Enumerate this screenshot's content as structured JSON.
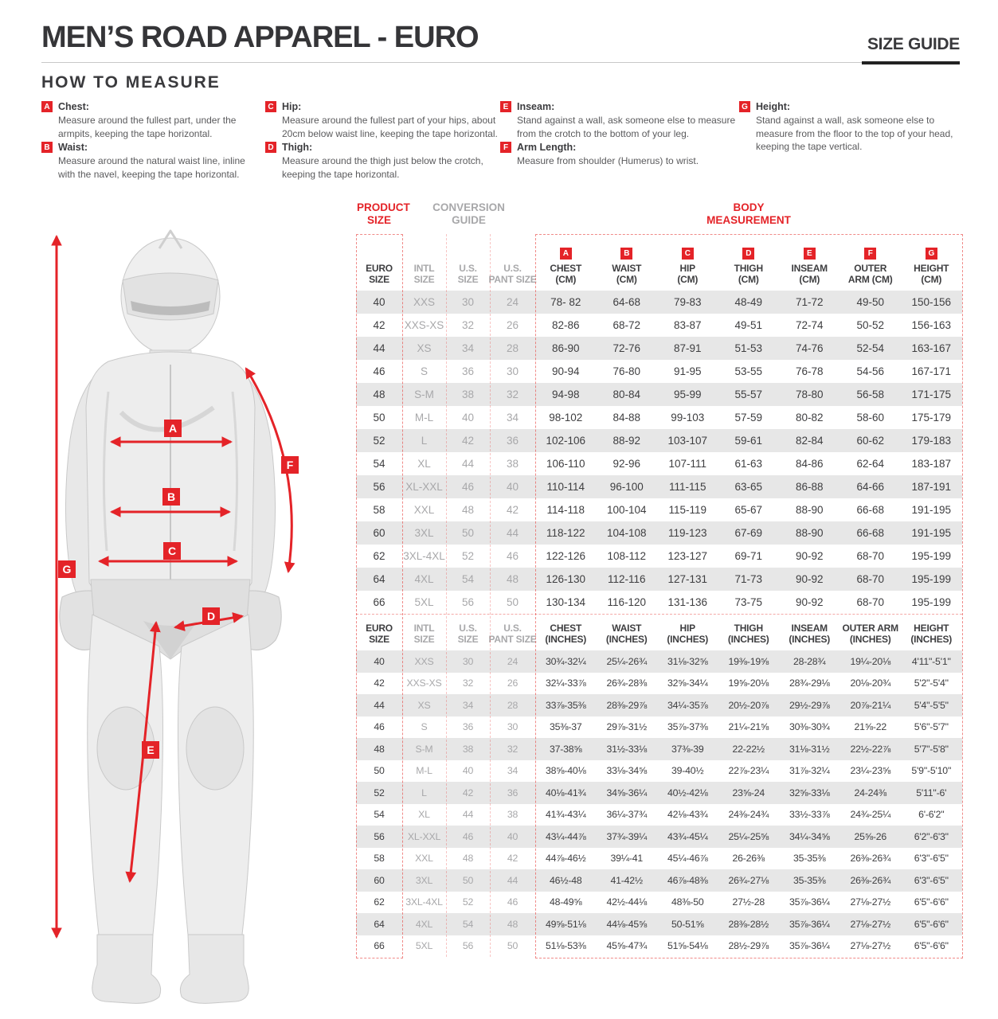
{
  "page": {
    "title": "MEN’S ROAD APPAREL - EURO",
    "size_guide_label": "SIZE GUIDE"
  },
  "colors": {
    "accent_red": "#e42328",
    "stripe_gray": "#e7e7e7",
    "conversion_gray": "#a8a8aa",
    "text_dark": "#3e3e40"
  },
  "how_to_measure": {
    "heading": "HOW TO MEASURE",
    "columns": [
      [
        {
          "letter": "A",
          "name": "Chest:",
          "description": "Measure around the fullest part, under the armpits, keeping the tape horizontal."
        },
        {
          "letter": "B",
          "name": "Waist:",
          "description": "Measure around the natural waist line, inline with the navel, keeping the tape horizontal."
        }
      ],
      [
        {
          "letter": "C",
          "name": "Hip:",
          "description": "Measure around the fullest part of your hips, about 20cm below waist line, keeping the tape horizontal."
        },
        {
          "letter": "D",
          "name": "Thigh:",
          "description": "Measure around the thigh just below the crotch, keeping the tape horizontal."
        }
      ],
      [
        {
          "letter": "E",
          "name": "Inseam:",
          "description": "Stand against a wall, ask someone else to measure from the crotch to the bottom of your leg."
        },
        {
          "letter": "F",
          "name": "Arm Length:",
          "description": "Measure from shoulder (Humerus) to wrist."
        }
      ],
      [
        {
          "letter": "G",
          "name": "Height:",
          "description": "Stand against a wall, ask someone else to measure from the floor to the top of your head, keeping the tape vertical."
        }
      ]
    ]
  },
  "figure": {
    "badges": [
      "A",
      "B",
      "C",
      "D",
      "E",
      "F",
      "G"
    ]
  },
  "table": {
    "section_labels": {
      "product_size": "PRODUCT SIZE",
      "conversion_guide": "CONVERSION GUIDE",
      "body_measurement": "BODY MEASUREMENT"
    },
    "cm_headers": [
      {
        "line1": "EURO",
        "line2": "SIZE"
      },
      {
        "line1": "INTL",
        "line2": "SIZE"
      },
      {
        "line1": "U.S.",
        "line2": "SIZE"
      },
      {
        "line1": "U.S.",
        "line2": "PANT SIZE"
      },
      {
        "badge": "A",
        "line1": "CHEST",
        "line2": "(CM)"
      },
      {
        "badge": "B",
        "line1": "WAIST",
        "line2": "(CM)"
      },
      {
        "badge": "C",
        "line1": "HIP",
        "line2": "(CM)"
      },
      {
        "badge": "D",
        "line1": "THIGH",
        "line2": "(CM)"
      },
      {
        "badge": "E",
        "line1": "INSEAM",
        "line2": "(CM)"
      },
      {
        "badge": "F",
        "line1": "OUTER",
        "line2": "ARM (CM)"
      },
      {
        "badge": "G",
        "line1": "HEIGHT",
        "line2": "(CM)"
      }
    ],
    "cm_rows": [
      [
        "40",
        "XXS",
        "30",
        "24",
        "78- 82",
        "64-68",
        "79-83",
        "48-49",
        "71-72",
        "49-50",
        "150-156"
      ],
      [
        "42",
        "XXS-XS",
        "32",
        "26",
        "82-86",
        "68-72",
        "83-87",
        "49-51",
        "72-74",
        "50-52",
        "156-163"
      ],
      [
        "44",
        "XS",
        "34",
        "28",
        "86-90",
        "72-76",
        "87-91",
        "51-53",
        "74-76",
        "52-54",
        "163-167"
      ],
      [
        "46",
        "S",
        "36",
        "30",
        "90-94",
        "76-80",
        "91-95",
        "53-55",
        "76-78",
        "54-56",
        "167-171"
      ],
      [
        "48",
        "S-M",
        "38",
        "32",
        "94-98",
        "80-84",
        "95-99",
        "55-57",
        "78-80",
        "56-58",
        "171-175"
      ],
      [
        "50",
        "M-L",
        "40",
        "34",
        "98-102",
        "84-88",
        "99-103",
        "57-59",
        "80-82",
        "58-60",
        "175-179"
      ],
      [
        "52",
        "L",
        "42",
        "36",
        "102-106",
        "88-92",
        "103-107",
        "59-61",
        "82-84",
        "60-62",
        "179-183"
      ],
      [
        "54",
        "XL",
        "44",
        "38",
        "106-110",
        "92-96",
        "107-111",
        "61-63",
        "84-86",
        "62-64",
        "183-187"
      ],
      [
        "56",
        "XL-XXL",
        "46",
        "40",
        "110-114",
        "96-100",
        "111-115",
        "63-65",
        "86-88",
        "64-66",
        "187-191"
      ],
      [
        "58",
        "XXL",
        "48",
        "42",
        "114-118",
        "100-104",
        "115-119",
        "65-67",
        "88-90",
        "66-68",
        "191-195"
      ],
      [
        "60",
        "3XL",
        "50",
        "44",
        "118-122",
        "104-108",
        "119-123",
        "67-69",
        "88-90",
        "66-68",
        "191-195"
      ],
      [
        "62",
        "3XL-4XL",
        "52",
        "46",
        "122-126",
        "108-112",
        "123-127",
        "69-71",
        "90-92",
        "68-70",
        "195-199"
      ],
      [
        "64",
        "4XL",
        "54",
        "48",
        "126-130",
        "112-116",
        "127-131",
        "71-73",
        "90-92",
        "68-70",
        "195-199"
      ],
      [
        "66",
        "5XL",
        "56",
        "50",
        "130-134",
        "116-120",
        "131-136",
        "73-75",
        "90-92",
        "68-70",
        "195-199"
      ]
    ],
    "inch_headers": [
      {
        "line1": "EURO",
        "line2": "SIZE"
      },
      {
        "line1": "INTL",
        "line2": "SIZE"
      },
      {
        "line1": "U.S.",
        "line2": "SIZE"
      },
      {
        "line1": "U.S.",
        "line2": "PANT SIZE"
      },
      {
        "line1": "CHEST",
        "line2": "(INCHES)"
      },
      {
        "line1": "WAIST",
        "line2": "(INCHES)"
      },
      {
        "line1": "HIP",
        "line2": "(INCHES)"
      },
      {
        "line1": "THIGH",
        "line2": "(INCHES)"
      },
      {
        "line1": "INSEAM",
        "line2": "(INCHES)"
      },
      {
        "line1": "OUTER ARM",
        "line2": "(INCHES)"
      },
      {
        "line1": "HEIGHT",
        "line2": "(INCHES)"
      }
    ],
    "inch_rows": [
      [
        "40",
        "XXS",
        "30",
        "24",
        "30¾-32¼",
        "25¼-26¾",
        "31⅛-32⅝",
        "19⅜-19⅝",
        "28-28¾",
        "19¼-20⅛",
        "4'11\"-5'1\""
      ],
      [
        "42",
        "XXS-XS",
        "32",
        "26",
        "32¼-33⅞",
        "26¾-28⅜",
        "32⅝-34¼",
        "19⅝-20⅛",
        "28¾-29⅛",
        "20⅛-20¾",
        "5'2\"-5'4\""
      ],
      [
        "44",
        "XS",
        "34",
        "28",
        "33⅞-35⅜",
        "28⅜-29⅞",
        "34¼-35⅞",
        "20½-20⅞",
        "29½-29⅞",
        "20⅞-21¼",
        "5'4\"-5'5\""
      ],
      [
        "46",
        "S",
        "36",
        "30",
        "35⅜-37",
        "29⅞-31½",
        "35⅞-37⅜",
        "21¼-21⅝",
        "30⅜-30¾",
        "21⅝-22",
        "5'6\"-5'7\""
      ],
      [
        "48",
        "S-M",
        "38",
        "32",
        "37-38⅝",
        "31½-33⅛",
        "37⅜-39",
        "22-22½",
        "31⅛-31½",
        "22½-22⅞",
        "5'7\"-5'8\""
      ],
      [
        "50",
        "M-L",
        "40",
        "34",
        "38⅝-40⅛",
        "33⅛-34⅝",
        "39-40½",
        "22⅞-23¼",
        "31⅞-32¼",
        "23¼-23⅝",
        "5'9\"-5'10\""
      ],
      [
        "52",
        "L",
        "42",
        "36",
        "40⅛-41¾",
        "34⅝-36¼",
        "40½-42⅛",
        "23⅝-24",
        "32⅝-33⅛",
        "24-24⅜",
        "5'11\"-6'"
      ],
      [
        "54",
        "XL",
        "44",
        "38",
        "41¾-43¼",
        "36¼-37¾",
        "42⅛-43¾",
        "24⅜-24¾",
        "33½-33⅞",
        "24¾-25¼",
        "6'-6'2\""
      ],
      [
        "56",
        "XL-XXL",
        "46",
        "40",
        "43¼-44⅞",
        "37¾-39¼",
        "43¾-45¼",
        "25¼-25⅝",
        "34¼-34⅝",
        "25⅝-26",
        "6'2\"-6'3\""
      ],
      [
        "58",
        "XXL",
        "48",
        "42",
        "44⅞-46½",
        "39¼-41",
        "45¼-46⅞",
        "26-26⅜",
        "35-35⅜",
        "26⅜-26¾",
        "6'3\"-6'5\""
      ],
      [
        "60",
        "3XL",
        "50",
        "44",
        "46½-48",
        "41-42½",
        "46⅞-48⅜",
        "26¾-27⅛",
        "35-35⅜",
        "26⅜-26¾",
        "6'3\"-6'5\""
      ],
      [
        "62",
        "3XL-4XL",
        "52",
        "46",
        "48-49⅝",
        "42½-44⅛",
        "48⅜-50",
        "27½-28",
        "35⅞-36¼",
        "27⅛-27½",
        "6'5\"-6'6\""
      ],
      [
        "64",
        "4XL",
        "54",
        "48",
        "49⅝-51⅛",
        "44⅛-45⅝",
        "50-51⅝",
        "28⅜-28½",
        "35⅞-36¼",
        "27⅛-27½",
        "6'5\"-6'6\""
      ],
      [
        "66",
        "5XL",
        "56",
        "50",
        "51⅛-53⅜",
        "45⅝-47¾",
        "51⅝-54⅛",
        "28½-29⅞",
        "35⅞-36¼",
        "27⅛-27½",
        "6'5\"-6'6\""
      ]
    ]
  }
}
